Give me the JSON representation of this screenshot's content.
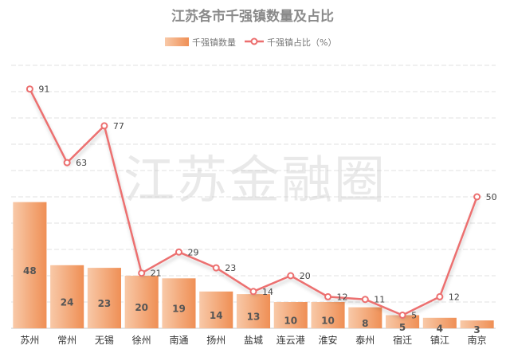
{
  "chart_data": {
    "type": "bar",
    "title": "江苏各市千强镇数量及占比",
    "categories": [
      "苏州",
      "常州",
      "无锡",
      "徐州",
      "南通",
      "扬州",
      "盐城",
      "连云港",
      "淮安",
      "泰州",
      "宿迁",
      "镇江",
      "南京"
    ],
    "series": [
      {
        "name": "千强镇数量",
        "type": "bar",
        "values": [
          48,
          24,
          23,
          20,
          19,
          14,
          13,
          10,
          10,
          8,
          5,
          4,
          3
        ]
      },
      {
        "name": "千强镇占比（%）",
        "type": "line",
        "values": [
          91,
          63,
          77,
          21,
          29,
          23,
          14,
          20,
          12,
          11,
          5,
          12,
          50
        ]
      }
    ],
    "ylim_bar": [
      0,
      100
    ],
    "ylim_line": [
      0,
      100
    ],
    "grid": true,
    "legend_position": "top-center",
    "colors": {
      "bar_start": "#f8c9a8",
      "bar_end": "#ef8f55",
      "line": "#ec6f6f",
      "grid": "#e0e0e0"
    }
  },
  "watermark": "江苏金融圈"
}
